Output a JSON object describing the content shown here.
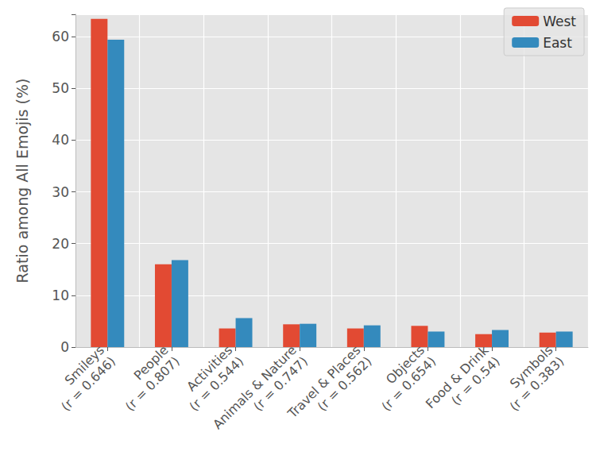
{
  "chart_data": {
    "type": "bar",
    "y_label": "Ratio among All Emojis (%)",
    "categories": [
      "Smileys\n(r = 0.646)",
      "People\n(r = 0.807)",
      "Activities\n(r = 0.544)",
      "Animals & Nature\n(r = 0.747)",
      "Travel & Places\n(r = 0.562)",
      "Objects\n(r = 0.654)",
      "Food & Drink\n(r = 0.54)",
      "Symbols\n(r = 0.383)"
    ],
    "series": [
      {
        "name": "West",
        "color": "#E24A33",
        "values": [
          63.4,
          16.0,
          3.6,
          4.4,
          3.6,
          4.1,
          2.5,
          2.8
        ]
      },
      {
        "name": "East",
        "color": "#348ABD",
        "values": [
          59.4,
          16.8,
          5.6,
          4.5,
          4.2,
          3.0,
          3.3,
          3.0
        ]
      }
    ],
    "ylim": [
      0,
      64.3
    ],
    "yticks": [
      0,
      10,
      20,
      30,
      40,
      50,
      60
    ],
    "grid": true,
    "legend": "upper right"
  }
}
